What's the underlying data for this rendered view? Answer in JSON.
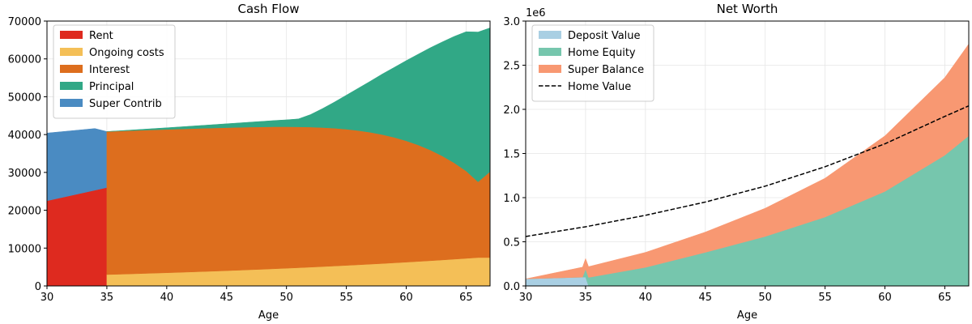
{
  "chart_data": [
    {
      "type": "area",
      "stacked": true,
      "title": "Cash Flow",
      "xlabel": "Age",
      "ylabel": "",
      "xlim": [
        30,
        67
      ],
      "ylim": [
        0,
        70000
      ],
      "xticks": [
        30,
        35,
        40,
        45,
        50,
        55,
        60,
        65
      ],
      "yticks": [
        0,
        10000,
        20000,
        30000,
        40000,
        50000,
        60000,
        70000
      ],
      "grid": true,
      "legend_position": "upper left",
      "x": [
        30,
        31,
        32,
        33,
        34,
        35,
        36,
        37,
        38,
        39,
        40,
        41,
        42,
        43,
        44,
        45,
        46,
        47,
        48,
        49,
        50,
        51,
        52,
        53,
        54,
        55,
        56,
        57,
        58,
        59,
        60,
        61,
        62,
        63,
        64,
        65,
        66,
        67
      ],
      "series": [
        {
          "name": "Rent",
          "color": "#de2a1f",
          "values": [
            22500,
            23200,
            23900,
            24600,
            25300,
            0,
            0,
            0,
            0,
            0,
            0,
            0,
            0,
            0,
            0,
            0,
            0,
            0,
            0,
            0,
            0,
            0,
            0,
            0,
            0,
            0,
            0,
            0,
            0,
            0,
            0,
            0,
            0,
            0,
            0,
            0,
            0,
            0
          ]
        },
        {
          "name": "Ongoing costs",
          "color": "#f4bf57",
          "values": [
            0,
            0,
            0,
            0,
            0,
            3000,
            3090,
            3180,
            3280,
            3380,
            3480,
            3580,
            3690,
            3800,
            3910,
            4030,
            4150,
            4280,
            4400,
            4540,
            4670,
            4810,
            4960,
            5110,
            5260,
            5420,
            5580,
            5750,
            5920,
            6100,
            6280,
            6470,
            6660,
            6860,
            7070,
            7280,
            7500,
            7500
          ]
        },
        {
          "name": "Interest",
          "color": "#dd6e1e",
          "values": [
            0,
            0,
            0,
            0,
            0,
            37800,
            37830,
            37860,
            37870,
            37880,
            37880,
            37880,
            37870,
            37850,
            37830,
            37800,
            37750,
            37700,
            37620,
            37530,
            37400,
            37230,
            37020,
            36750,
            36420,
            36000,
            35480,
            34850,
            34080,
            33160,
            32070,
            30780,
            29270,
            27510,
            25470,
            23100,
            20000,
            22700
          ]
        },
        {
          "name": "Principal",
          "color": "#31a886",
          "values": [
            0,
            0,
            0,
            0,
            0,
            0,
            80,
            160,
            250,
            340,
            440,
            550,
            660,
            780,
            900,
            1030,
            1170,
            1310,
            1480,
            1650,
            1830,
            2100,
            3300,
            5000,
            6900,
            9000,
            11200,
            13500,
            16000,
            18500,
            21200,
            24000,
            27000,
            30100,
            33400,
            36800,
            39600,
            38000
          ]
        },
        {
          "name": "Super Contrib",
          "color": "#4a8bc2",
          "values": [
            17900,
            17500,
            17100,
            16700,
            16300,
            0,
            0,
            0,
            0,
            0,
            0,
            0,
            0,
            0,
            0,
            0,
            0,
            0,
            0,
            0,
            0,
            0,
            0,
            0,
            0,
            0,
            0,
            0,
            0,
            0,
            0,
            0,
            0,
            0,
            0,
            0,
            0,
            0
          ]
        }
      ]
    },
    {
      "type": "area",
      "stacked": true,
      "title": "Net Worth",
      "xlabel": "Age",
      "ylabel": "",
      "y_offset_label": "1e6",
      "xlim": [
        30,
        67
      ],
      "ylim": [
        0,
        3.0
      ],
      "xticks": [
        30,
        35,
        40,
        45,
        50,
        55,
        60,
        65
      ],
      "yticks": [
        0.0,
        0.5,
        1.0,
        1.5,
        2.0,
        2.5,
        3.0
      ],
      "grid": true,
      "legend_position": "upper left",
      "x": [
        30,
        35,
        40,
        45,
        50,
        55,
        60,
        65,
        67
      ],
      "series": [
        {
          "name": "Deposit Value",
          "color": "#a9cfe3",
          "values": [
            0.08,
            0.1,
            0,
            0,
            0,
            0,
            0,
            0,
            0
          ]
        },
        {
          "name": "Home Equity",
          "color": "#76c6ad",
          "values": [
            0,
            0,
            0.21,
            0.38,
            0.56,
            0.78,
            1.07,
            1.48,
            1.7
          ]
        },
        {
          "name": "Super Balance",
          "color": "#f89872",
          "values": [
            0.0,
            0.12,
            0.17,
            0.23,
            0.32,
            0.44,
            0.63,
            0.88,
            1.04
          ]
        },
        {
          "name": "Home Value",
          "style": "dashed-line",
          "color": "#000000",
          "values": [
            0.56,
            0.67,
            0.8,
            0.95,
            1.13,
            1.35,
            1.61,
            1.92,
            2.04
          ]
        }
      ]
    }
  ]
}
